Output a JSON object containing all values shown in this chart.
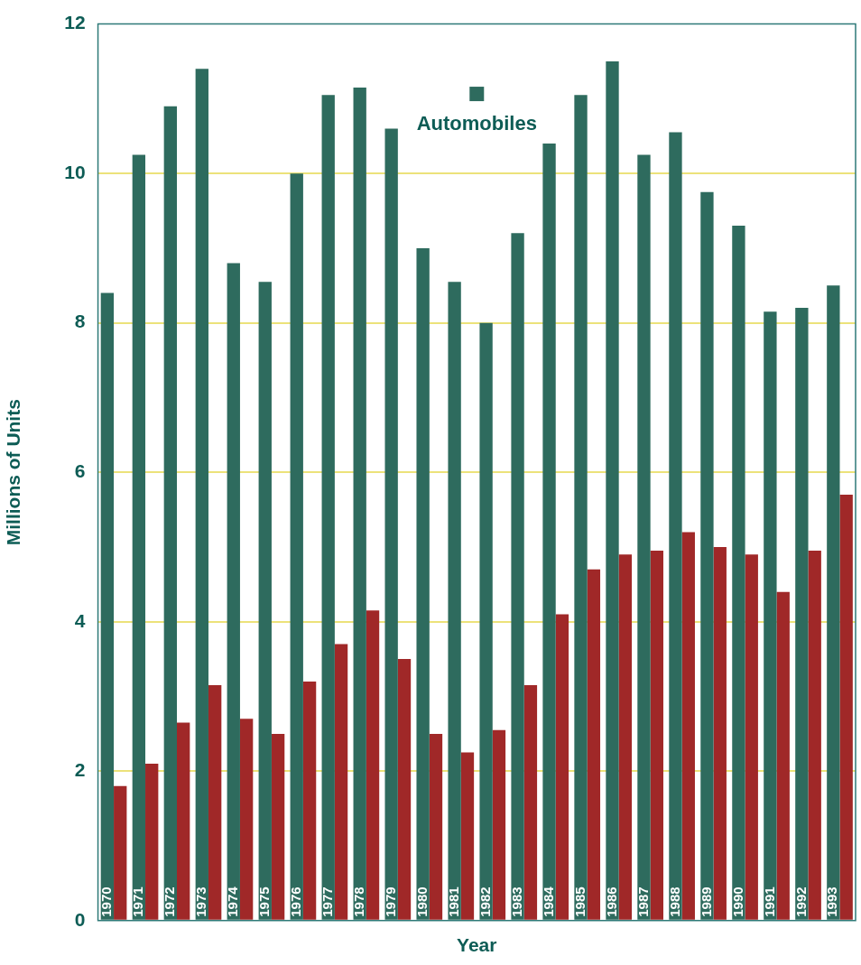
{
  "chart_data": {
    "type": "bar",
    "xlabel": "Year",
    "ylabel": "Millions of Units",
    "categories": [
      "1970",
      "1971",
      "1972",
      "1973",
      "1974",
      "1975",
      "1976",
      "1977",
      "1978",
      "1979",
      "1980",
      "1981",
      "1982",
      "1983",
      "1984",
      "1985",
      "1986",
      "1987",
      "1988",
      "1989",
      "1990",
      "1991",
      "1992",
      "1993"
    ],
    "series": [
      {
        "name": "Automobiles",
        "color": "#2e6b5e",
        "values": [
          8.4,
          10.25,
          10.9,
          11.4,
          8.8,
          8.55,
          10.0,
          11.05,
          11.15,
          10.6,
          9.0,
          8.55,
          8.0,
          9.2,
          10.4,
          11.05,
          11.5,
          10.25,
          10.55,
          9.75,
          9.3,
          8.15,
          8.2,
          8.5
        ]
      },
      {
        "color": "#a02828",
        "values": [
          1.8,
          2.1,
          2.65,
          3.15,
          2.7,
          2.5,
          3.2,
          3.7,
          4.15,
          3.5,
          2.5,
          2.25,
          2.55,
          3.15,
          4.1,
          4.7,
          4.9,
          4.95,
          5.2,
          5.0,
          4.9,
          4.4,
          4.95,
          5.7
        ]
      }
    ],
    "ylim": [
      0,
      12
    ],
    "yticks": [
      0,
      2,
      4,
      6,
      8,
      10,
      12
    ],
    "grid": "y",
    "legend": "top"
  }
}
